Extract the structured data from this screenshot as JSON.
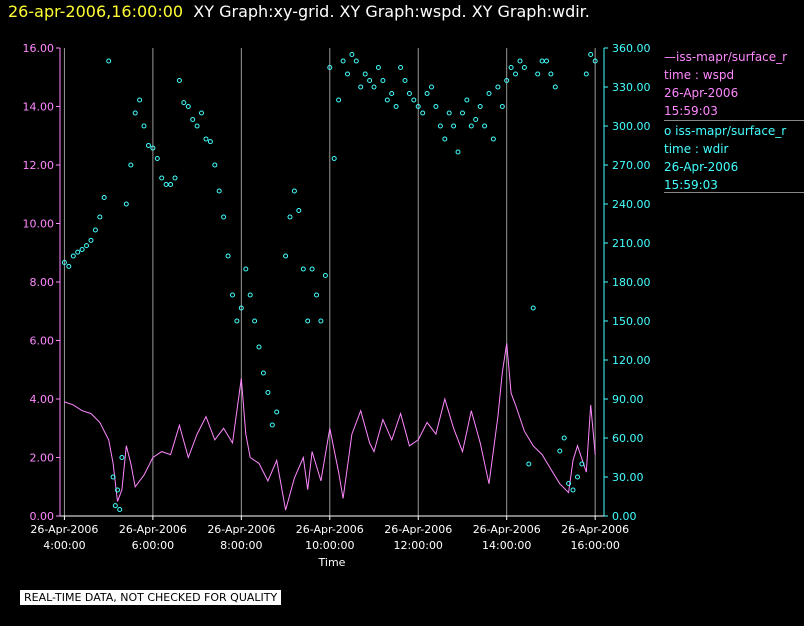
{
  "header": {
    "date_label": "26-apr-2006,16:00:00",
    "graphs_label": "XY Graph:xy-grid.  XY Graph:wspd.  XY Graph:wdir."
  },
  "legend": [
    {
      "series": "iss-mapr/surface_met",
      "line1": "iss-mapr/surface_r",
      "line2": "time : wspd",
      "line3": "26-Apr-2006",
      "line4": "15:59:03",
      "color": "#ff88ff"
    },
    {
      "series": "iss-mapr/surface_met",
      "line1": "iss-mapr/surface_r",
      "line2": "time : wdir",
      "line3": "26-Apr-2006",
      "line4": "15:59:03",
      "color": "#44ffff"
    }
  ],
  "footer": {
    "quality_note": "REAL-TIME DATA, NOT CHECKED FOR QUALITY"
  },
  "chart_data": {
    "type": "line",
    "title": "26-apr-2006,16:00:00  XY Graph:xy-grid.  XY Graph:wspd.  XY Graph:wdir.",
    "xlabel": "Time",
    "x_range_hours": [
      3.9,
      16.2
    ],
    "x_ticks": [
      {
        "hour": 4,
        "date": "26-Apr-2006",
        "time": "4:00:00"
      },
      {
        "hour": 6,
        "date": "26-Apr-2006",
        "time": "6:00:00"
      },
      {
        "hour": 8,
        "date": "26-Apr-2006",
        "time": "8:00:00"
      },
      {
        "hour": 10,
        "date": "26-Apr-2006",
        "time": "10:00:00"
      },
      {
        "hour": 12,
        "date": "26-Apr-2006",
        "time": "12:00:00"
      },
      {
        "hour": 14,
        "date": "26-Apr-2006",
        "time": "14:00:00"
      },
      {
        "hour": 16,
        "date": "26-Apr-2006",
        "time": "16:00:00"
      }
    ],
    "left_axis": {
      "label": "wspd",
      "ylim": [
        0,
        16
      ],
      "ticks": [
        "0.00",
        "2.00",
        "4.00",
        "6.00",
        "8.00",
        "10.00",
        "12.00",
        "14.00",
        "16.00"
      ],
      "color": "#ff88ff"
    },
    "right_axis": {
      "label": "wdir",
      "ylim": [
        0,
        360
      ],
      "ticks": [
        "0.00",
        "30.00",
        "60.00",
        "90.00",
        "120.00",
        "150.00",
        "180.00",
        "210.00",
        "240.00",
        "270.00",
        "300.00",
        "330.00",
        "360.00"
      ],
      "color": "#44ffff"
    },
    "grid": "vertical",
    "series": [
      {
        "name": "iss-mapr/surface_met time : wspd",
        "style": "line",
        "axis": "left",
        "color": "#ff88ff",
        "x": [
          4.0,
          4.2,
          4.4,
          4.6,
          4.8,
          5.0,
          5.1,
          5.2,
          5.3,
          5.4,
          5.5,
          5.6,
          5.8,
          6.0,
          6.2,
          6.4,
          6.6,
          6.8,
          7.0,
          7.2,
          7.4,
          7.6,
          7.8,
          8.0,
          8.1,
          8.2,
          8.4,
          8.6,
          8.8,
          9.0,
          9.2,
          9.4,
          9.5,
          9.6,
          9.8,
          10.0,
          10.2,
          10.3,
          10.5,
          10.7,
          10.9,
          11.0,
          11.2,
          11.4,
          11.6,
          11.8,
          12.0,
          12.2,
          12.4,
          12.6,
          12.8,
          13.0,
          13.2,
          13.4,
          13.6,
          13.8,
          13.9,
          14.0,
          14.1,
          14.2,
          14.4,
          14.6,
          14.8,
          15.0,
          15.2,
          15.4,
          15.5,
          15.6,
          15.8,
          15.9,
          16.0
        ],
        "values": [
          3.9,
          3.8,
          3.6,
          3.5,
          3.2,
          2.6,
          1.8,
          0.5,
          0.9,
          2.4,
          1.8,
          1.0,
          1.4,
          2.0,
          2.2,
          2.1,
          3.1,
          2.0,
          2.8,
          3.4,
          2.6,
          3.0,
          2.5,
          4.7,
          2.8,
          2.0,
          1.8,
          1.2,
          1.9,
          0.2,
          1.3,
          2.0,
          0.9,
          2.2,
          1.2,
          3.0,
          1.5,
          0.6,
          2.8,
          3.6,
          2.5,
          2.2,
          3.3,
          2.6,
          3.5,
          2.4,
          2.6,
          3.2,
          2.8,
          4.0,
          3.0,
          2.2,
          3.6,
          2.5,
          1.1,
          3.4,
          4.9,
          5.9,
          4.2,
          3.8,
          2.9,
          2.4,
          2.1,
          1.6,
          1.1,
          0.8,
          1.9,
          2.4,
          1.5,
          3.8,
          2.1
        ]
      },
      {
        "name": "iss-mapr/surface_met time : wdir",
        "style": "scatter",
        "axis": "right",
        "color": "#44ffff",
        "x": [
          4.0,
          4.1,
          4.2,
          4.3,
          4.4,
          4.5,
          4.6,
          4.7,
          4.8,
          4.9,
          5.0,
          5.1,
          5.15,
          5.2,
          5.25,
          5.3,
          5.4,
          5.5,
          5.6,
          5.7,
          5.8,
          5.9,
          6.0,
          6.1,
          6.2,
          6.3,
          6.4,
          6.5,
          6.6,
          6.7,
          6.8,
          6.9,
          7.0,
          7.1,
          7.2,
          7.3,
          7.4,
          7.5,
          7.6,
          7.7,
          7.8,
          7.9,
          8.0,
          8.1,
          8.2,
          8.3,
          8.4,
          8.5,
          8.6,
          8.7,
          8.8,
          9.0,
          9.1,
          9.2,
          9.3,
          9.4,
          9.5,
          9.6,
          9.7,
          9.8,
          9.9,
          10.0,
          10.1,
          10.2,
          10.3,
          10.4,
          10.5,
          10.6,
          10.7,
          10.8,
          10.9,
          11.0,
          11.1,
          11.2,
          11.3,
          11.4,
          11.5,
          11.6,
          11.7,
          11.8,
          11.9,
          12.0,
          12.1,
          12.2,
          12.3,
          12.4,
          12.5,
          12.6,
          12.7,
          12.8,
          12.9,
          13.0,
          13.1,
          13.2,
          13.3,
          13.4,
          13.5,
          13.6,
          13.7,
          13.8,
          13.9,
          14.0,
          14.1,
          14.2,
          14.3,
          14.4,
          14.5,
          14.6,
          14.7,
          14.8,
          14.9,
          15.0,
          15.1,
          15.2,
          15.3,
          15.4,
          15.5,
          15.6,
          15.7,
          15.8,
          15.9,
          16.0
        ],
        "values": [
          195,
          192,
          200,
          203,
          205,
          208,
          212,
          220,
          230,
          245,
          350,
          30,
          8,
          20,
          5,
          45,
          240,
          270,
          310,
          320,
          300,
          285,
          283,
          275,
          260,
          255,
          255,
          260,
          335,
          318,
          315,
          305,
          300,
          310,
          290,
          288,
          270,
          250,
          230,
          200,
          170,
          150,
          160,
          190,
          170,
          150,
          130,
          110,
          95,
          70,
          80,
          200,
          230,
          250,
          235,
          190,
          150,
          190,
          170,
          150,
          185,
          345,
          275,
          320,
          350,
          340,
          355,
          350,
          330,
          340,
          335,
          330,
          345,
          335,
          320,
          325,
          315,
          345,
          335,
          325,
          320,
          315,
          310,
          325,
          330,
          315,
          300,
          290,
          310,
          300,
          280,
          310,
          320,
          300,
          305,
          315,
          300,
          325,
          290,
          330,
          315,
          335,
          345,
          340,
          350,
          345,
          40,
          160,
          340,
          350,
          350,
          340,
          330,
          50,
          60,
          25,
          20,
          30,
          40,
          340,
          355,
          350
        ]
      }
    ]
  }
}
